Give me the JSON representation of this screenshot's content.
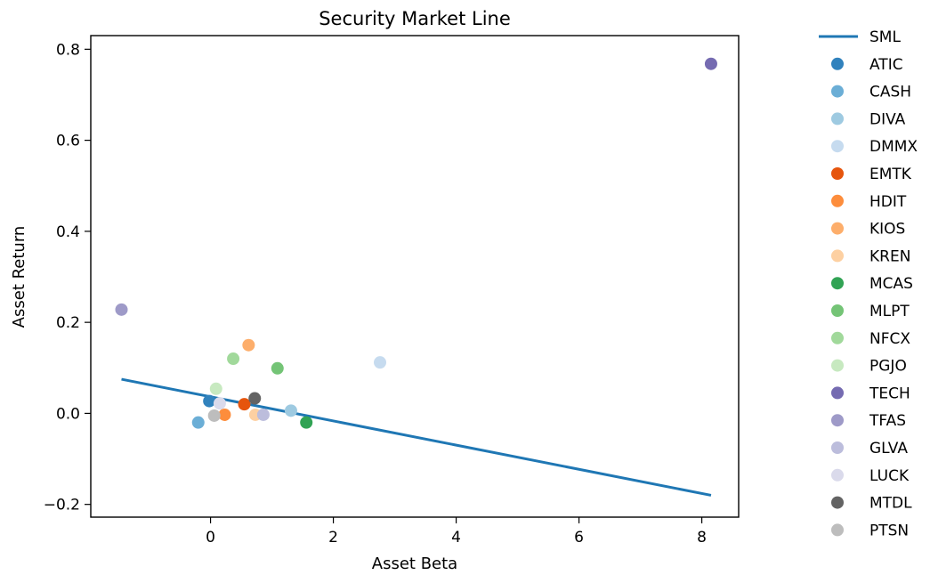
{
  "chart_data": {
    "type": "scatter",
    "title": "Security Market Line",
    "xlabel": "Asset Beta",
    "ylabel": "Asset Return",
    "xlim": [
      -1.95,
      8.6
    ],
    "ylim": [
      -0.228,
      0.83
    ],
    "xticks": [
      0,
      2,
      4,
      6,
      8
    ],
    "xtick_labels": [
      "0",
      "2",
      "4",
      "6",
      "8"
    ],
    "yticks": [
      -0.2,
      0.0,
      0.2,
      0.4,
      0.6,
      0.8
    ],
    "ytick_labels": [
      "−0.2",
      "0.0",
      "0.2",
      "0.4",
      "0.6",
      "0.8"
    ],
    "grid": false,
    "legend_position": "outside-right",
    "line": {
      "name": "SML",
      "color": "#1f77b4",
      "x": [
        -1.45,
        8.15
      ],
      "y": [
        0.075,
        -0.18
      ]
    },
    "series": [
      {
        "name": "ATIC",
        "color": "#3182bd",
        "x": -0.02,
        "y": 0.027
      },
      {
        "name": "CASH",
        "color": "#6baed6",
        "x": -0.2,
        "y": -0.02
      },
      {
        "name": "DIVA",
        "color": "#9ecae1",
        "x": 1.31,
        "y": 0.006
      },
      {
        "name": "DMMX",
        "color": "#c6dbef",
        "x": 2.76,
        "y": 0.112
      },
      {
        "name": "EMTK",
        "color": "#e6550d",
        "x": 0.55,
        "y": 0.02
      },
      {
        "name": "HDIT",
        "color": "#fd8d3c",
        "x": 0.23,
        "y": -0.003
      },
      {
        "name": "KIOS",
        "color": "#fdae6b",
        "x": 0.62,
        "y": 0.15
      },
      {
        "name": "KREN",
        "color": "#fdd0a2",
        "x": 0.73,
        "y": -0.003
      },
      {
        "name": "MCAS",
        "color": "#31a354",
        "x": 1.56,
        "y": -0.02
      },
      {
        "name": "MLPT",
        "color": "#74c476",
        "x": 1.09,
        "y": 0.099
      },
      {
        "name": "NFCX",
        "color": "#a1d99b",
        "x": 0.37,
        "y": 0.12
      },
      {
        "name": "PGJO",
        "color": "#c7e9c0",
        "x": 0.09,
        "y": 0.054
      },
      {
        "name": "TECH",
        "color": "#756bb1",
        "x": 8.15,
        "y": 0.768
      },
      {
        "name": "TFAS",
        "color": "#9e9ac8",
        "x": -1.45,
        "y": 0.228
      },
      {
        "name": "GLVA",
        "color": "#bcbddc",
        "x": 0.86,
        "y": -0.003
      },
      {
        "name": "LUCK",
        "color": "#dadaeb",
        "x": 0.15,
        "y": 0.022
      },
      {
        "name": "MTDL",
        "color": "#636363",
        "x": 0.72,
        "y": 0.033
      },
      {
        "name": "PTSN",
        "color": "#bdbdbd",
        "x": 0.06,
        "y": -0.005
      }
    ]
  }
}
